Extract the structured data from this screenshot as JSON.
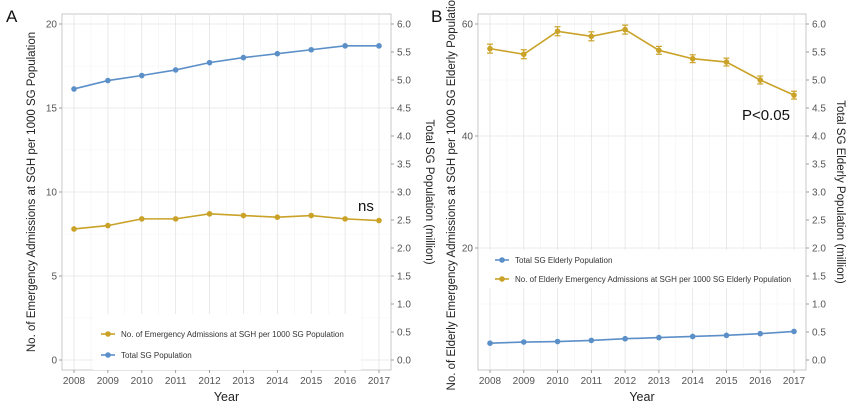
{
  "chart_data": [
    {
      "panel": "A",
      "type": "line",
      "x": [
        2008,
        2009,
        2010,
        2011,
        2012,
        2013,
        2014,
        2015,
        2016,
        2017
      ],
      "xlabel": "Year",
      "ylabel": "No. of Emergency Admissions at SGH per 1000 SG Population",
      "y2label": "Total SG Population (million)",
      "ylim": [
        0,
        20
      ],
      "y2lim": [
        0,
        6
      ],
      "yticks": [
        0,
        5,
        10,
        15,
        20
      ],
      "y2ticks": [
        "0.0",
        "0.5",
        "1.0",
        "1.5",
        "2.0",
        "2.5",
        "3.0",
        "3.5",
        "4.0",
        "4.5",
        "5.0",
        "5.5",
        "6.0"
      ],
      "annotation": "ns",
      "legend_position": "bottom",
      "series": [
        {
          "name": "No. of Emergency Admissions at SGH per 1000 SG Population",
          "axis": "left",
          "color": "#c9a227",
          "values": [
            7.8,
            8.0,
            8.4,
            8.4,
            8.7,
            8.6,
            8.5,
            8.6,
            8.4,
            8.3
          ]
        },
        {
          "name": "Total SG Population",
          "axis": "right",
          "color": "#5b8fc8",
          "values": [
            4.84,
            4.99,
            5.08,
            5.18,
            5.31,
            5.4,
            5.47,
            5.54,
            5.61,
            5.61
          ]
        }
      ]
    },
    {
      "panel": "B",
      "type": "line",
      "x": [
        2008,
        2009,
        2010,
        2011,
        2012,
        2013,
        2014,
        2015,
        2016,
        2017
      ],
      "xlabel": "Year",
      "ylabel": "No. of Elderly Emergency Admissions at SGH per 1000 SG Elderly Population",
      "y2label": "Total SG Elderly Population (million)",
      "ylim": [
        0,
        60
      ],
      "y2lim": [
        0,
        6
      ],
      "yticks": [
        20,
        40,
        60
      ],
      "y2ticks": [
        "0.0",
        "0.5",
        "1.0",
        "1.5",
        "2.0",
        "2.5",
        "3.0",
        "3.5",
        "4.0",
        "4.5",
        "5.0",
        "5.5",
        "6.0"
      ],
      "annotation": "P<0.05",
      "legend_position": "middle-left",
      "series": [
        {
          "name": "Total SG Elderly Population",
          "axis": "right",
          "color": "#5b8fc8",
          "values": [
            0.3,
            0.32,
            0.33,
            0.35,
            0.38,
            0.4,
            0.42,
            0.44,
            0.47,
            0.51
          ]
        },
        {
          "name": "No. of Elderly Emergency Admissions at SGH per 1000 SG Elderly Population",
          "axis": "left",
          "color": "#c9a227",
          "values": [
            55.6,
            54.6,
            58.7,
            57.8,
            59.0,
            55.3,
            53.8,
            53.2,
            50.0,
            47.3
          ],
          "errors": [
            0.8,
            0.8,
            0.8,
            0.8,
            0.8,
            0.7,
            0.7,
            0.7,
            0.7,
            0.7
          ]
        }
      ]
    }
  ]
}
